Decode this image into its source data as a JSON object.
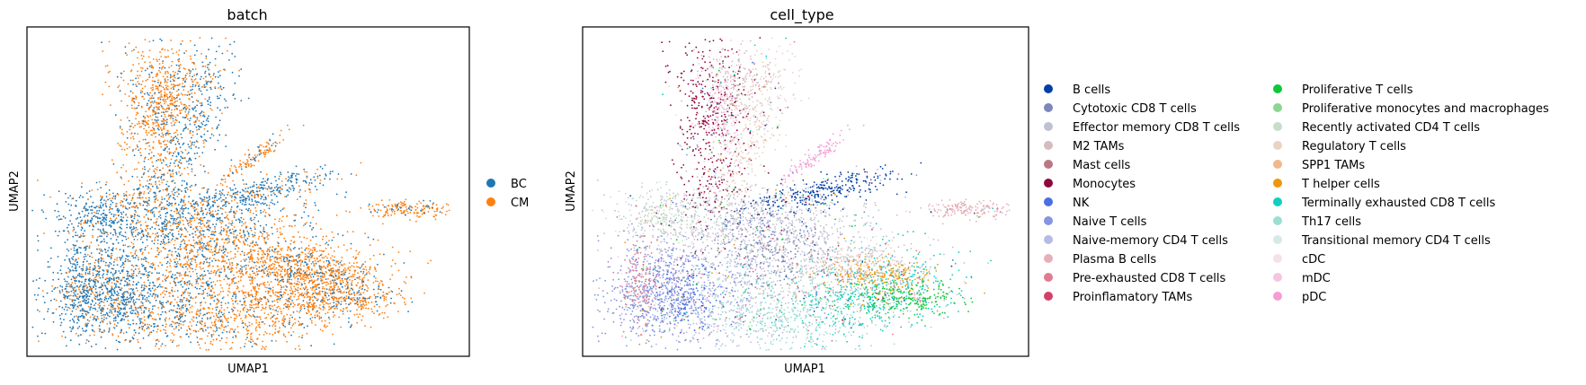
{
  "chart_data": [
    {
      "type": "scatter",
      "title": "batch",
      "xlabel": "UMAP1",
      "ylabel": "UMAP2",
      "grid": false,
      "legend_placement": "right",
      "series": [
        {
          "name": "BC",
          "color": "#1f77b4"
        },
        {
          "name": "CM",
          "color": "#ff7f0e"
        }
      ]
    },
    {
      "type": "scatter",
      "title": "cell_type",
      "xlabel": "UMAP1",
      "ylabel": "UMAP2",
      "grid": false,
      "legend_placement": "right",
      "series": [
        {
          "name": "B cells",
          "color": "#023fa5"
        },
        {
          "name": "Cytotoxic CD8 T cells",
          "color": "#7d87b9"
        },
        {
          "name": "Effector memory CD8 T cells",
          "color": "#bec1d4"
        },
        {
          "name": "M2 TAMs",
          "color": "#d6bcc0"
        },
        {
          "name": "Mast cells",
          "color": "#bb7784"
        },
        {
          "name": "Monocytes",
          "color": "#8e063b"
        },
        {
          "name": "NK",
          "color": "#4a6fe3"
        },
        {
          "name": "Naive T cells",
          "color": "#8595e1"
        },
        {
          "name": "Naive-memory CD4 T cells",
          "color": "#b5bbe3"
        },
        {
          "name": "Plasma B cells",
          "color": "#e6afb9"
        },
        {
          "name": "Pre-exhausted CD8 T cells",
          "color": "#e07b91"
        },
        {
          "name": "Proinflamatory TAMs",
          "color": "#d33f6a"
        },
        {
          "name": "Proliferative T cells",
          "color": "#11c638"
        },
        {
          "name": "Proliferative monocytes and macrophages",
          "color": "#8dd593"
        },
        {
          "name": "Recently activated CD4 T cells",
          "color": "#c6dec7"
        },
        {
          "name": "Regulatory T cells",
          "color": "#ead3c6"
        },
        {
          "name": "SPP1 TAMs",
          "color": "#f0b98d"
        },
        {
          "name": "T helper cells",
          "color": "#ef9708"
        },
        {
          "name": "Terminally exhausted CD8 T cells",
          "color": "#0fcfc0"
        },
        {
          "name": "Th17 cells",
          "color": "#9cded6"
        },
        {
          "name": "Transitional memory CD4 T cells",
          "color": "#d5eae7"
        },
        {
          "name": "cDC",
          "color": "#f3e1eb"
        },
        {
          "name": "mDC",
          "color": "#f6c4e1"
        },
        {
          "name": "pDC",
          "color": "#f79cd4"
        }
      ]
    }
  ]
}
